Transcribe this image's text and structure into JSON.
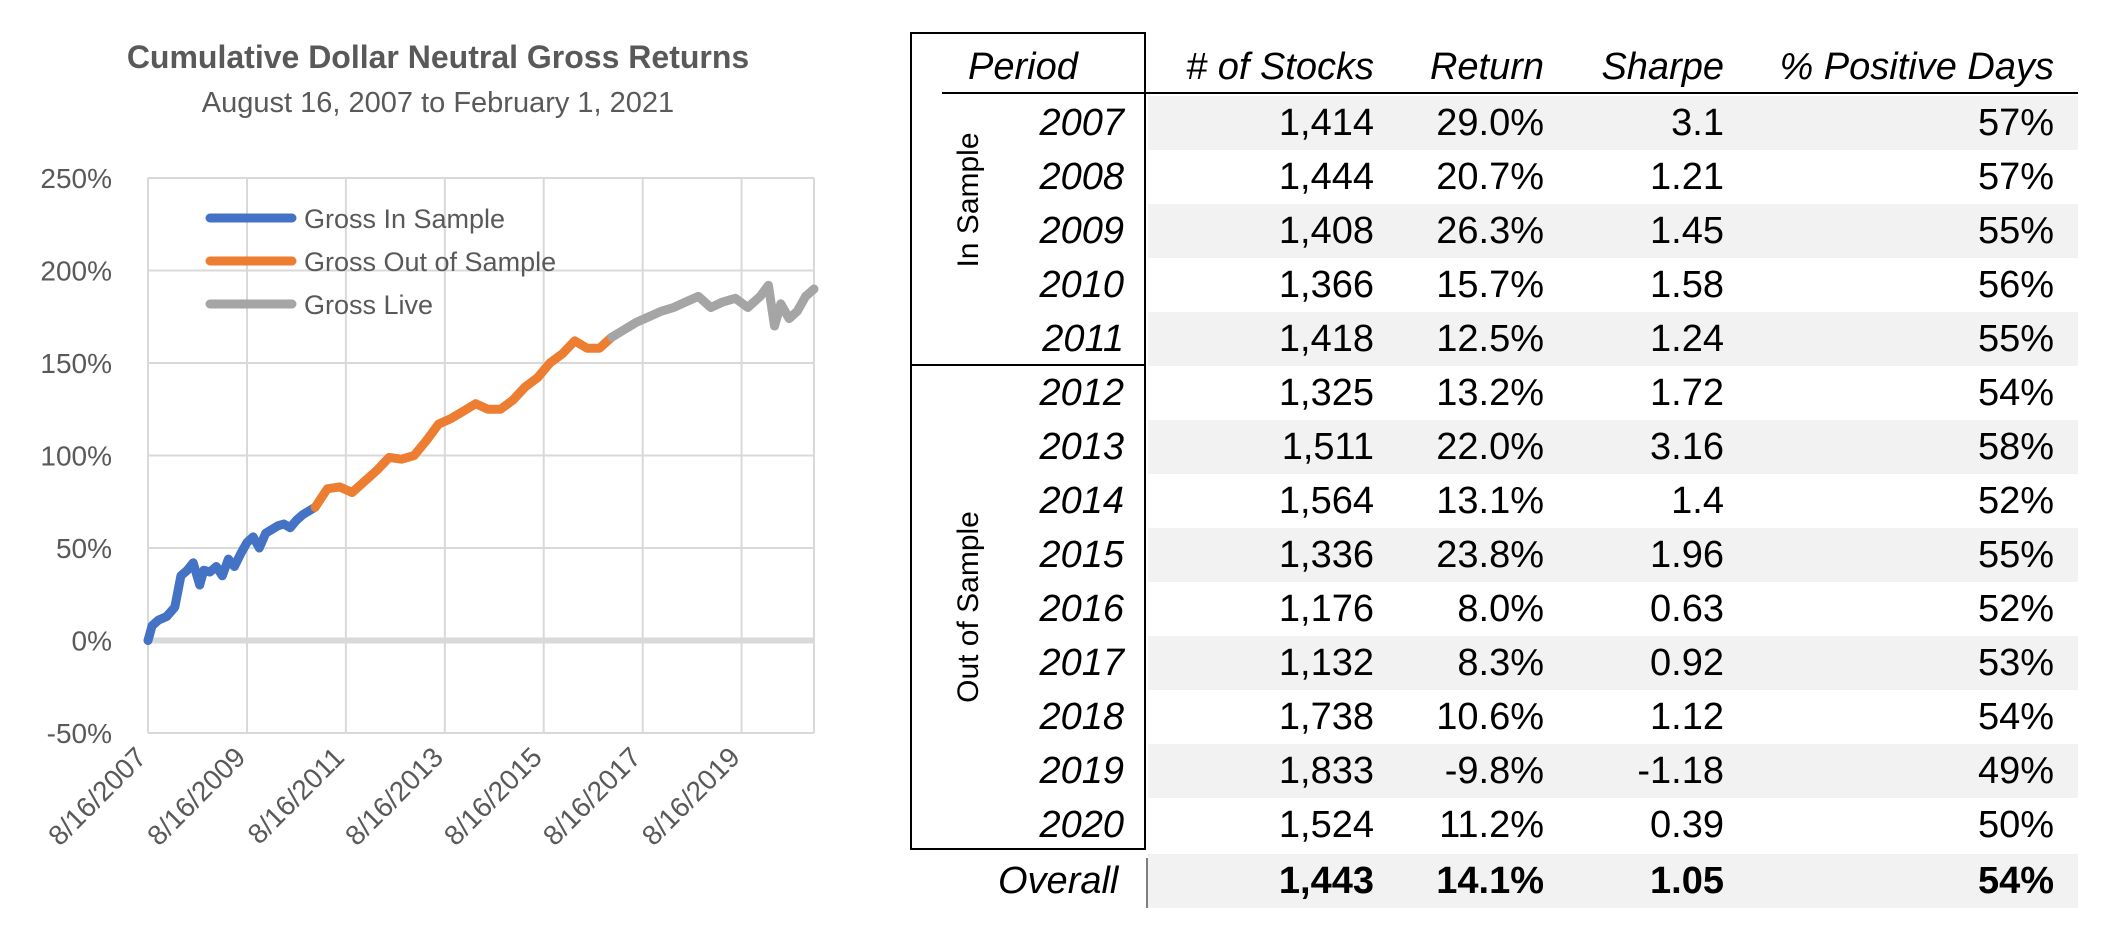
{
  "chart_data": {
    "type": "line",
    "title": "Cumulative Dollar Neutral Gross Returns",
    "subtitle": "August 16, 2007 to February 1, 2021",
    "y_ticks": [
      "250%",
      "200%",
      "150%",
      "100%",
      "50%",
      "0%",
      "-50%"
    ],
    "ylim": [
      -0.5,
      2.5
    ],
    "x_ticks": [
      "8/16/2007",
      "8/16/2009",
      "8/16/2011",
      "8/16/2013",
      "8/16/2015",
      "8/16/2017",
      "8/16/2019"
    ],
    "xlim": [
      "2007-08-16",
      "2021-02-01"
    ],
    "grid": true,
    "legend_position": "top-left",
    "series": [
      {
        "name": "Gross In Sample",
        "color": "#4472C4",
        "x": [
          "2007-08-16",
          "2007-09-15",
          "2007-11-01",
          "2008-01-01",
          "2008-03-01",
          "2008-04-15",
          "2008-06-01",
          "2008-07-15",
          "2008-09-01",
          "2008-10-01",
          "2008-11-15",
          "2009-01-01",
          "2009-02-15",
          "2009-04-01",
          "2009-05-15",
          "2009-07-01",
          "2009-08-16",
          "2009-10-01",
          "2009-11-15",
          "2010-01-01",
          "2010-02-15",
          "2010-04-01",
          "2010-05-15",
          "2010-07-01",
          "2010-08-16",
          "2010-10-01",
          "2010-12-31"
        ],
        "values": [
          0.0,
          0.08,
          0.11,
          0.13,
          0.18,
          0.35,
          0.38,
          0.42,
          0.3,
          0.38,
          0.37,
          0.4,
          0.35,
          0.44,
          0.4,
          0.47,
          0.53,
          0.56,
          0.5,
          0.58,
          0.6,
          0.62,
          0.63,
          0.61,
          0.65,
          0.68,
          0.72
        ]
      },
      {
        "name": "Gross Out of Sample",
        "color": "#ED7D31",
        "x": [
          "2011-01-01",
          "2011-04-01",
          "2011-07-01",
          "2011-10-01",
          "2012-01-01",
          "2012-04-01",
          "2012-07-01",
          "2012-10-01",
          "2013-01-01",
          "2013-04-01",
          "2013-07-01",
          "2013-10-01",
          "2014-01-01",
          "2014-04-01",
          "2014-07-01",
          "2014-10-01",
          "2015-01-01",
          "2015-04-01",
          "2015-07-01",
          "2015-10-01",
          "2016-01-01",
          "2016-04-01",
          "2016-07-01",
          "2016-10-01",
          "2016-12-31"
        ],
        "values": [
          0.72,
          0.82,
          0.83,
          0.8,
          0.86,
          0.92,
          0.99,
          0.98,
          1.0,
          1.08,
          1.17,
          1.2,
          1.24,
          1.28,
          1.25,
          1.25,
          1.3,
          1.37,
          1.42,
          1.5,
          1.55,
          1.62,
          1.58,
          1.58,
          1.64
        ]
      },
      {
        "name": "Gross Live",
        "color": "#A5A5A5",
        "x": [
          "2017-01-01",
          "2017-04-01",
          "2017-07-01",
          "2017-10-01",
          "2018-01-01",
          "2018-04-01",
          "2018-07-01",
          "2018-10-01",
          "2019-01-01",
          "2019-04-01",
          "2019-07-01",
          "2019-10-01",
          "2020-01-01",
          "2020-03-01",
          "2020-04-15",
          "2020-06-01",
          "2020-08-01",
          "2020-10-01",
          "2020-12-01",
          "2021-02-01"
        ],
        "values": [
          1.64,
          1.68,
          1.72,
          1.75,
          1.78,
          1.8,
          1.83,
          1.86,
          1.8,
          1.83,
          1.85,
          1.8,
          1.86,
          1.92,
          1.7,
          1.82,
          1.74,
          1.78,
          1.86,
          1.9
        ]
      }
    ]
  },
  "table": {
    "headers": {
      "period": "Period",
      "stocks": "# of Stocks",
      "return": "Return",
      "sharpe": "Sharpe",
      "positive": "% Positive Days"
    },
    "group_in_sample": "In Sample",
    "group_out_sample": "Out of Sample",
    "rows": [
      {
        "year": "2007",
        "stocks": "1,414",
        "return": "29.0%",
        "sharpe": "3.1",
        "positive": "57%"
      },
      {
        "year": "2008",
        "stocks": "1,444",
        "return": "20.7%",
        "sharpe": "1.21",
        "positive": "57%"
      },
      {
        "year": "2009",
        "stocks": "1,408",
        "return": "26.3%",
        "sharpe": "1.45",
        "positive": "55%"
      },
      {
        "year": "2010",
        "stocks": "1,366",
        "return": "15.7%",
        "sharpe": "1.58",
        "positive": "56%"
      },
      {
        "year": "2011",
        "stocks": "1,418",
        "return": "12.5%",
        "sharpe": "1.24",
        "positive": "55%"
      },
      {
        "year": "2012",
        "stocks": "1,325",
        "return": "13.2%",
        "sharpe": "1.72",
        "positive": "54%"
      },
      {
        "year": "2013",
        "stocks": "1,511",
        "return": "22.0%",
        "sharpe": "3.16",
        "positive": "58%"
      },
      {
        "year": "2014",
        "stocks": "1,564",
        "return": "13.1%",
        "sharpe": "1.4",
        "positive": "52%"
      },
      {
        "year": "2015",
        "stocks": "1,336",
        "return": "23.8%",
        "sharpe": "1.96",
        "positive": "55%"
      },
      {
        "year": "2016",
        "stocks": "1,176",
        "return": "8.0%",
        "sharpe": "0.63",
        "positive": "52%"
      },
      {
        "year": "2017",
        "stocks": "1,132",
        "return": "8.3%",
        "sharpe": "0.92",
        "positive": "53%"
      },
      {
        "year": "2018",
        "stocks": "1,738",
        "return": "10.6%",
        "sharpe": "1.12",
        "positive": "54%"
      },
      {
        "year": "2019",
        "stocks": "1,833",
        "return": "-9.8%",
        "sharpe": "-1.18",
        "positive": "49%"
      },
      {
        "year": "2020",
        "stocks": "1,524",
        "return": "11.2%",
        "sharpe": "0.39",
        "positive": "50%"
      }
    ],
    "overall": {
      "label": "Overall",
      "stocks": "1,443",
      "return": "14.1%",
      "sharpe": "1.05",
      "positive": "54%"
    }
  }
}
